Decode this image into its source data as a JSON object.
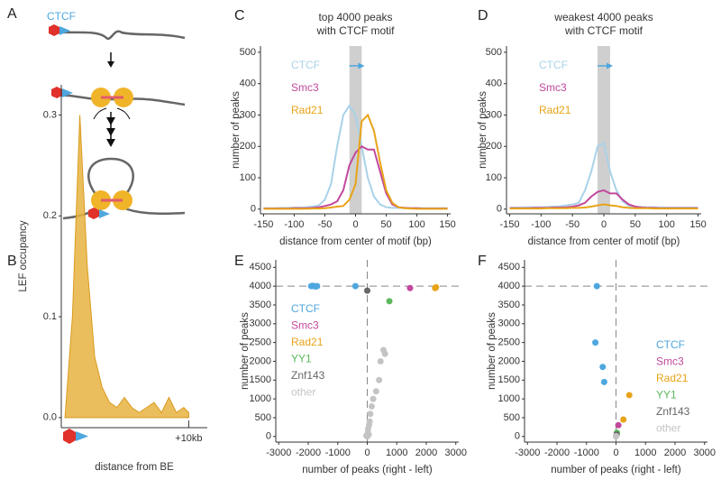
{
  "diagram": {
    "panel_label": "A",
    "label": "CTCF"
  },
  "chart_data": [
    {
      "type": "area",
      "panel_label": "B",
      "ylabel": "LEF occupancy",
      "xlabel": "distance from BE",
      "x": [
        0,
        0.6,
        1.2,
        1.8,
        2.4,
        3,
        3.6,
        4.2,
        4.8,
        5.4,
        6,
        6.6,
        7.2,
        7.8,
        8.4,
        9,
        9.6,
        10
      ],
      "values": [
        0,
        0.1,
        0.3,
        0.15,
        0.06,
        0.03,
        0.015,
        0.01,
        0.02,
        0.01,
        0.005,
        0.01,
        0.015,
        0.005,
        0.02,
        0.005,
        0.01,
        0.005
      ],
      "color": "#e8b341",
      "xlim": [
        -0.3,
        11.5
      ],
      "ylim": [
        -0.01,
        0.33
      ],
      "xticks": [
        {
          "value": 10,
          "label": "+10kb"
        }
      ],
      "yticks": [
        {
          "value": 0,
          "label": "0.0"
        },
        0.1,
        0.2,
        0.3
      ]
    },
    {
      "type": "line",
      "panel_label": "C",
      "title": [
        "top 4000 peaks",
        "with CTCF motif"
      ],
      "ylabel": "number of peaks",
      "xlabel": "distance from center of motif (bp)",
      "x": [
        -150,
        -140,
        -130,
        -120,
        -110,
        -100,
        -90,
        -80,
        -70,
        -60,
        -50,
        -40,
        -30,
        -20,
        -10,
        0,
        10,
        20,
        30,
        40,
        50,
        60,
        70,
        80,
        90,
        100,
        110,
        120,
        130,
        140,
        150
      ],
      "series": [
        {
          "name": "CTCF",
          "color": "#a9d2e8",
          "values": [
            3,
            3,
            3,
            4,
            4,
            5,
            5,
            6,
            8,
            12,
            30,
            80,
            200,
            300,
            330,
            300,
            200,
            100,
            40,
            15,
            6,
            4,
            4,
            3,
            3,
            3,
            3,
            3,
            3,
            3,
            3
          ]
        },
        {
          "name": "Smc3",
          "color": "#c2489c",
          "values": [
            2,
            2,
            2,
            2,
            2,
            3,
            3,
            3,
            4,
            6,
            10,
            15,
            25,
            60,
            140,
            180,
            200,
            190,
            190,
            120,
            50,
            15,
            6,
            4,
            3,
            3,
            2,
            2,
            2,
            2,
            2
          ]
        },
        {
          "name": "Rad21",
          "color": "#e8a317",
          "values": [
            1,
            1,
            1,
            1,
            1,
            1,
            1,
            1,
            2,
            2,
            3,
            5,
            8,
            10,
            30,
            80,
            280,
            300,
            250,
            150,
            60,
            20,
            6,
            3,
            2,
            1,
            1,
            1,
            1,
            1,
            1
          ]
        }
      ],
      "motif_band": [
        -10,
        10
      ],
      "xlim": [
        -155,
        155
      ],
      "ylim": [
        -15,
        520
      ],
      "xticks": [
        -150,
        -100,
        -50,
        0,
        50,
        100,
        150
      ],
      "yticks": [
        0,
        100,
        200,
        300,
        400,
        500
      ]
    },
    {
      "type": "line",
      "panel_label": "D",
      "title": [
        "weakest 4000 peaks",
        "with CTCF motif"
      ],
      "ylabel": "number of peaks",
      "xlabel": "distance from center of motif (bp)",
      "x": [
        -150,
        -140,
        -130,
        -120,
        -110,
        -100,
        -90,
        -80,
        -70,
        -60,
        -50,
        -40,
        -30,
        -20,
        -10,
        0,
        10,
        20,
        30,
        40,
        50,
        60,
        70,
        80,
        90,
        100,
        110,
        120,
        130,
        140,
        150
      ],
      "series": [
        {
          "name": "CTCF",
          "color": "#a9d2e8",
          "values": [
            5,
            5,
            5,
            6,
            6,
            6,
            7,
            8,
            9,
            12,
            15,
            20,
            60,
            120,
            200,
            210,
            120,
            60,
            25,
            10,
            8,
            7,
            6,
            6,
            5,
            5,
            5,
            5,
            5,
            5,
            5
          ]
        },
        {
          "name": "Smc3",
          "color": "#c2489c",
          "values": [
            3,
            3,
            3,
            3,
            4,
            4,
            4,
            5,
            5,
            6,
            8,
            12,
            20,
            40,
            55,
            60,
            50,
            50,
            30,
            15,
            8,
            5,
            4,
            4,
            3,
            3,
            3,
            3,
            3,
            3,
            3
          ]
        },
        {
          "name": "Rad21",
          "color": "#e8a317",
          "values": [
            2,
            2,
            2,
            2,
            2,
            2,
            3,
            3,
            3,
            3,
            4,
            4,
            5,
            8,
            12,
            15,
            12,
            10,
            6,
            4,
            3,
            3,
            3,
            2,
            2,
            2,
            2,
            2,
            2,
            2,
            2
          ]
        }
      ],
      "motif_band": [
        -10,
        10
      ],
      "xlim": [
        -155,
        155
      ],
      "ylim": [
        -15,
        520
      ],
      "xticks": [
        -150,
        -100,
        -50,
        0,
        50,
        100,
        150
      ],
      "yticks": [
        0,
        100,
        200,
        300,
        400,
        500
      ]
    },
    {
      "type": "scatter",
      "panel_label": "E",
      "ylabel": "number of peaks",
      "xlabel": "number of peaks (right - left)",
      "series": [
        {
          "name": "CTCF",
          "color": "#4ea7de",
          "x": [
            -1900,
            -1850,
            -1800,
            -1750,
            -1700,
            -400
          ],
          "values": [
            4000,
            4010,
            4000,
            3990,
            4000,
            4000
          ]
        },
        {
          "name": "Smc3",
          "color": "#c2489c",
          "x": [
            1450
          ],
          "values": [
            3950
          ]
        },
        {
          "name": "Rad21",
          "color": "#e8a317",
          "x": [
            2300,
            2330
          ],
          "values": [
            3950,
            3970
          ]
        },
        {
          "name": "YY1",
          "color": "#5cb85c",
          "x": [
            750
          ],
          "values": [
            3600
          ]
        },
        {
          "name": "Znf143",
          "color": "#666666",
          "x": [
            0
          ],
          "values": [
            3880
          ]
        },
        {
          "name": "other",
          "color": "#c4c4c4",
          "x": [
            -30,
            0,
            20,
            30,
            50,
            60,
            80,
            100,
            150,
            200,
            300,
            400,
            450,
            550,
            600
          ],
          "values": [
            20,
            0,
            100,
            200,
            50,
            300,
            400,
            600,
            800,
            1000,
            1200,
            1500,
            2000,
            2300,
            2200
          ]
        }
      ],
      "ref_lines": {
        "x": 0,
        "y": 4000
      },
      "legend": "left",
      "xlim": [
        -3100,
        3100
      ],
      "ylim": [
        -150,
        4700
      ],
      "xticks": [
        -3000,
        -2000,
        -1000,
        0,
        1000,
        2000,
        3000
      ],
      "yticks": [
        0,
        500,
        1000,
        1500,
        2000,
        2500,
        3000,
        3500,
        4000,
        4500
      ]
    },
    {
      "type": "scatter",
      "panel_label": "F",
      "ylabel": "number of peaks",
      "xlabel": "number of peaks (right - left)",
      "series": [
        {
          "name": "CTCF",
          "color": "#4ea7de",
          "x": [
            -650,
            -700,
            -450,
            -400
          ],
          "values": [
            4000,
            2500,
            1850,
            1450
          ]
        },
        {
          "name": "Smc3",
          "color": "#c2489c",
          "x": [
            80
          ],
          "values": [
            300
          ]
        },
        {
          "name": "Rad21",
          "color": "#e8a317",
          "x": [
            450,
            250
          ],
          "values": [
            1100,
            450
          ]
        },
        {
          "name": "YY1",
          "color": "#5cb85c",
          "x": [
            30
          ],
          "values": [
            100
          ]
        },
        {
          "name": "Znf143",
          "color": "#666666",
          "x": [
            20
          ],
          "values": [
            50
          ]
        },
        {
          "name": "other",
          "color": "#c4c4c4",
          "x": [
            0,
            5
          ],
          "values": [
            0,
            10
          ]
        }
      ],
      "ref_lines": {
        "x": 0,
        "y": 4000
      },
      "legend": "right",
      "xlim": [
        -3100,
        3100
      ],
      "ylim": [
        -150,
        4700
      ],
      "xticks": [
        -3000,
        -2000,
        -1000,
        0,
        1000,
        2000,
        3000
      ],
      "yticks": [
        0,
        500,
        1000,
        1500,
        2000,
        2500,
        3000,
        3500,
        4000,
        4500
      ]
    }
  ]
}
